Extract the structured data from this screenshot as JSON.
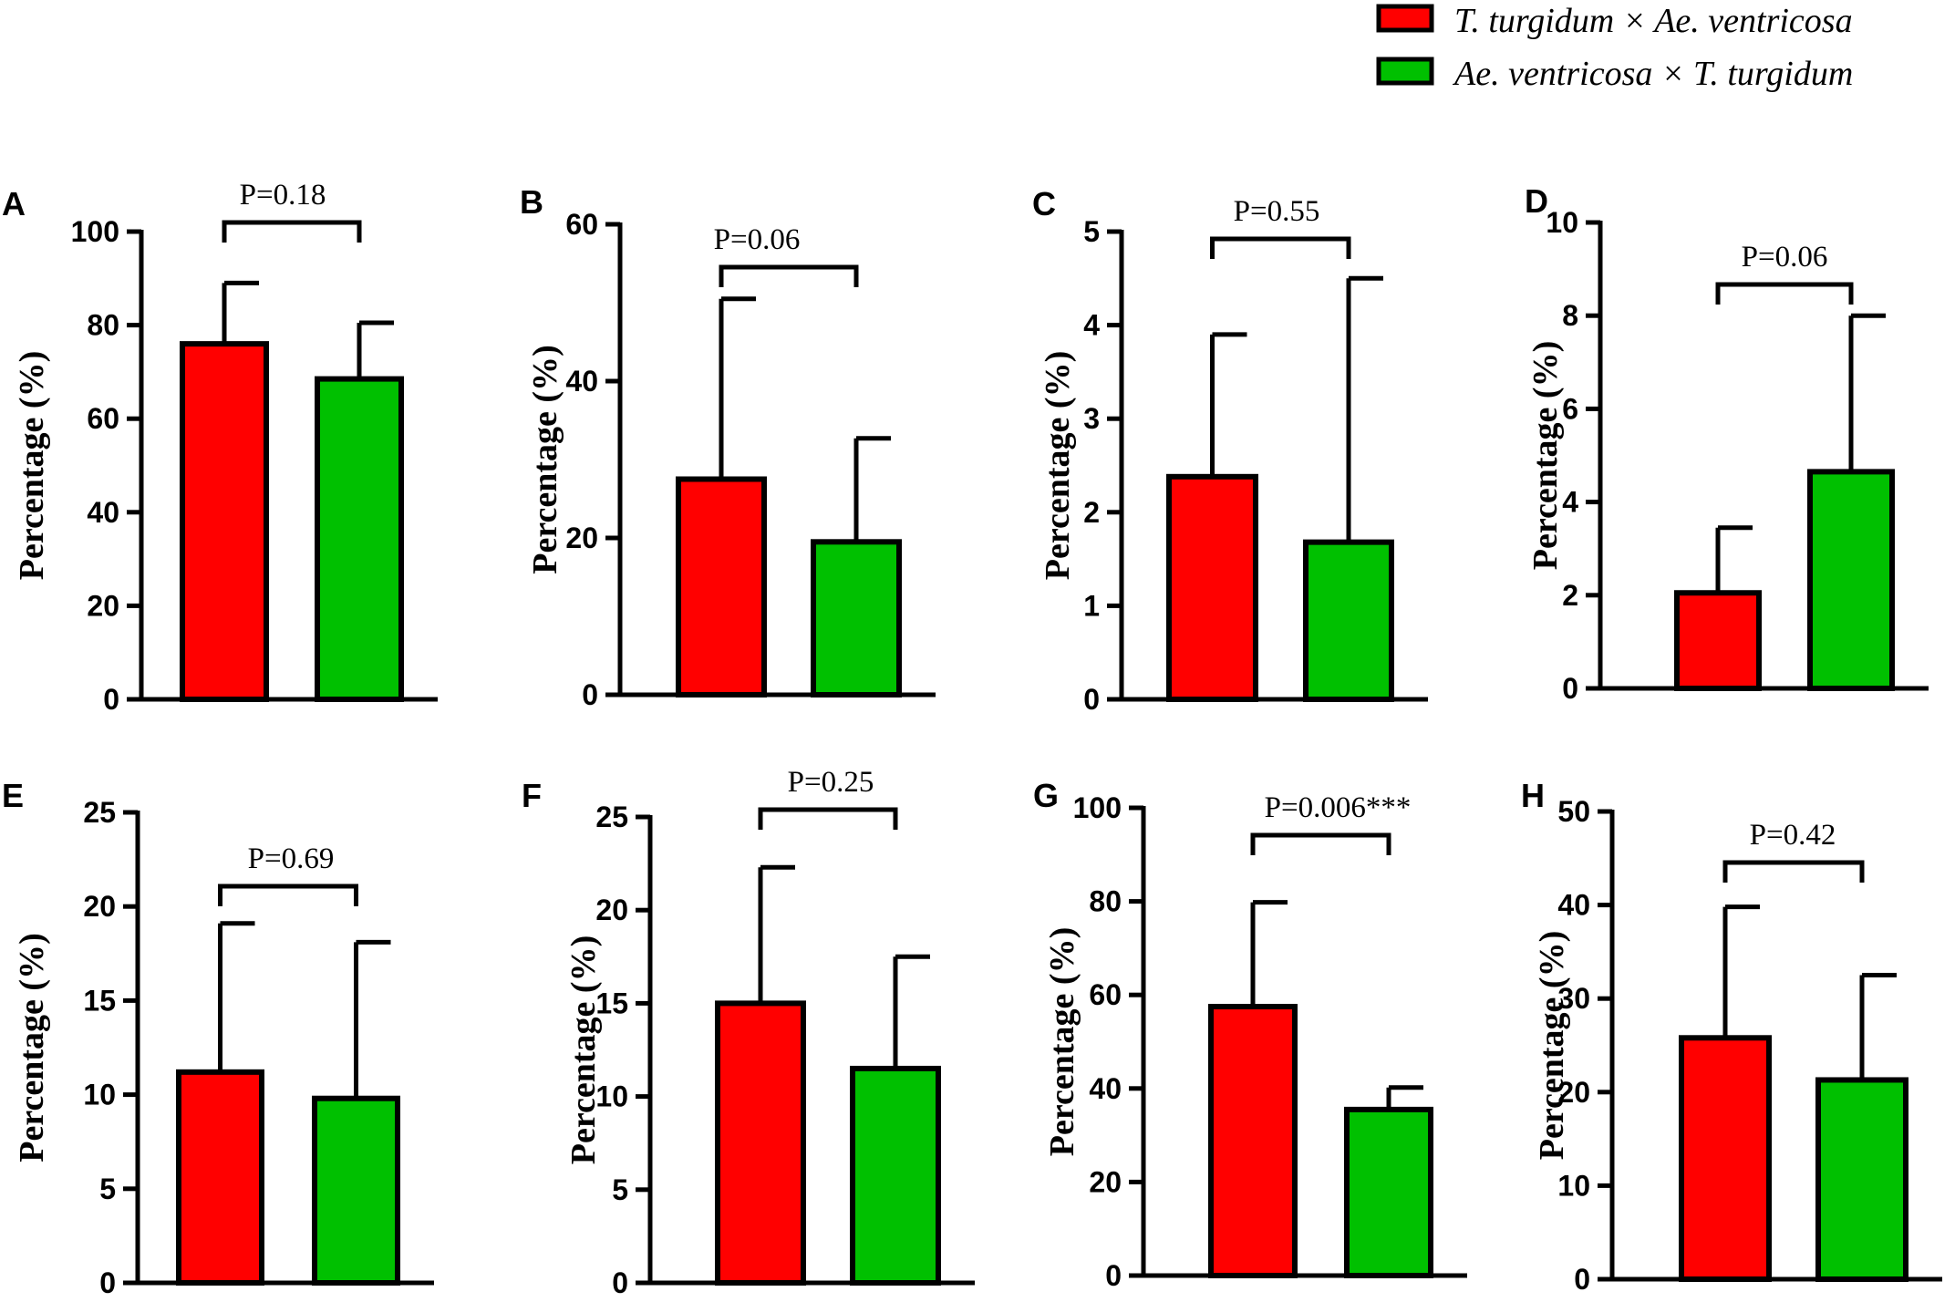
{
  "colors": {
    "series1": "#ff0000",
    "series2": "#00c000",
    "ink": "#000000"
  },
  "legend": [
    {
      "label": "T. turgidum × Ae. ventricosa",
      "color": "#ff0000"
    },
    {
      "label": "Ae. ventricosa × T. turgidum",
      "color": "#00c000"
    }
  ],
  "chart_data": [
    {
      "type": "bar",
      "panel": "A",
      "ylabel": "Percentage (%)",
      "ylim": [
        0,
        100
      ],
      "yticks": [
        "0",
        "20",
        "40",
        "60",
        "80",
        "100"
      ],
      "p_label": "P=0.18",
      "series": [
        {
          "name": "T. turgidum × Ae. ventricosa",
          "value": 76,
          "error": 13
        },
        {
          "name": "Ae. ventricosa × T. turgidum",
          "value": 68.5,
          "error": 12
        }
      ]
    },
    {
      "type": "bar",
      "panel": "B",
      "ylabel": "Percentage (%)",
      "ylim": [
        0,
        60
      ],
      "yticks": [
        "0",
        "20",
        "40",
        "60"
      ],
      "p_label": "P=0.06",
      "series": [
        {
          "name": "T. turgidum × Ae. ventricosa",
          "value": 27.5,
          "error": 23
        },
        {
          "name": "Ae. ventricosa × T. turgidum",
          "value": 19.5,
          "error": 13.2
        }
      ]
    },
    {
      "type": "bar",
      "panel": "C",
      "ylabel": "Percentage (%)",
      "ylim": [
        0,
        5
      ],
      "yticks": [
        "0",
        "1",
        "2",
        "3",
        "4",
        "5"
      ],
      "p_label": "P=0.55",
      "series": [
        {
          "name": "T. turgidum × Ae. ventricosa",
          "value": 2.38,
          "error": 1.52
        },
        {
          "name": "Ae. ventricosa × T. turgidum",
          "value": 1.68,
          "error": 2.82
        }
      ]
    },
    {
      "type": "bar",
      "panel": "D",
      "ylabel": "Percentage (%)",
      "ylim": [
        0,
        10
      ],
      "yticks": [
        "0",
        "2",
        "4",
        "6",
        "8",
        "10"
      ],
      "p_label": "P=0.06",
      "series": [
        {
          "name": "T. turgidum × Ae. ventricosa",
          "value": 2.05,
          "error": 1.4
        },
        {
          "name": "Ae. ventricosa × T. turgidum",
          "value": 4.65,
          "error": 3.35
        }
      ]
    },
    {
      "type": "bar",
      "panel": "E",
      "ylabel": "Percentage (%)",
      "ylim": [
        0,
        25
      ],
      "yticks": [
        "0",
        "5",
        "10",
        "15",
        "20",
        "25"
      ],
      "p_label": "P=0.69",
      "series": [
        {
          "name": "T. turgidum × Ae. ventricosa",
          "value": 11.2,
          "error": 7.9
        },
        {
          "name": "Ae. ventricosa × T. turgidum",
          "value": 9.8,
          "error": 8.3
        }
      ]
    },
    {
      "type": "bar",
      "panel": "F",
      "ylabel": "Percentage (%)",
      "ylim": [
        0,
        25
      ],
      "yticks": [
        "0",
        "5",
        "10",
        "15",
        "20",
        "25"
      ],
      "p_label": "P=0.25",
      "series": [
        {
          "name": "T. turgidum × Ae. ventricosa",
          "value": 15,
          "error": 7.3
        },
        {
          "name": "Ae. ventricosa × T. turgidum",
          "value": 11.5,
          "error": 6
        }
      ]
    },
    {
      "type": "bar",
      "panel": "G",
      "ylabel": "Percentage (%)",
      "ylim": [
        0,
        100
      ],
      "yticks": [
        "0",
        "20",
        "40",
        "60",
        "80",
        "100"
      ],
      "p_label": "P=0.006***",
      "series": [
        {
          "name": "T. turgidum × Ae. ventricosa",
          "value": 57.5,
          "error": 22.3
        },
        {
          "name": "Ae. ventricosa × T. turgidum",
          "value": 35.5,
          "error": 4.7
        }
      ]
    },
    {
      "type": "bar",
      "panel": "H",
      "ylabel": "Percentage (%)",
      "ylim": [
        0,
        50
      ],
      "yticks": [
        "0",
        "10",
        "20",
        "30",
        "40",
        "50"
      ],
      "p_label": "P=0.42",
      "series": [
        {
          "name": "T. turgidum × Ae. ventricosa",
          "value": 25.8,
          "error": 14
        },
        {
          "name": "Ae. ventricosa × T. turgidum",
          "value": 21.3,
          "error": 11.2
        }
      ]
    }
  ]
}
